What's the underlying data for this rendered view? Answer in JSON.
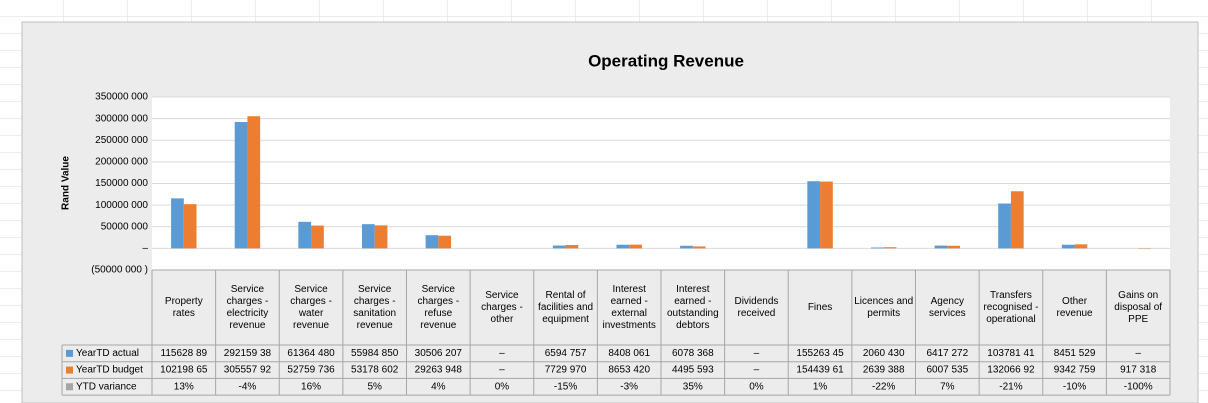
{
  "chart_data": {
    "type": "bar",
    "title": "Operating Revenue",
    "y_label": "Rand Value",
    "categories": [
      "Property rates",
      "Service charges - electricity revenue",
      "Service charges - water revenue",
      "Service charges - sanitation revenue",
      "Service charges - refuse revenue",
      "Service charges - other",
      "Rental of facilities and equipment",
      "Interest earned - external investments",
      "Interest earned - outstanding debtors",
      "Dividends received",
      "Fines",
      "Licences and permits",
      "Agency services",
      "Transfers recognised - operational",
      "Other revenue",
      "Gains on disposal of PPE"
    ],
    "series": [
      {
        "name": "YearTD actual",
        "color": "#5b9bd5",
        "values": [
          115628890,
          292159380,
          61364480,
          55984850,
          30506207,
          0,
          6594757,
          8408061,
          6078368,
          0,
          155263450,
          2060430,
          6417272,
          103781410,
          8451529,
          0
        ],
        "value_labels": [
          "115628 89",
          "292159 38",
          "61364 480",
          "55984 850",
          "30506 207",
          "–",
          "6594 757",
          "8408 061",
          "6078 368",
          "–",
          "155263 45",
          "2060 430",
          "6417 272",
          "103781 41",
          "8451 529",
          "–"
        ]
      },
      {
        "name": "YearTD budget",
        "color": "#ed7d31",
        "values": [
          102198650,
          305557920,
          52759736,
          53178602,
          29263948,
          0,
          7729970,
          8653420,
          4495593,
          0,
          154439610,
          2639388,
          6007535,
          132066920,
          9342759,
          917318
        ],
        "value_labels": [
          "102198 65",
          "305557 92",
          "52759 736",
          "53178 602",
          "29263 948",
          "–",
          "7729 970",
          "8653 420",
          "4495 593",
          "–",
          "154439 61",
          "2639 388",
          "6007 535",
          "132066 92",
          "9342 759",
          "917 318"
        ]
      },
      {
        "name": "YTD variance",
        "color": "#a5a5a5",
        "table_only": true,
        "values": [
          13,
          -4,
          16,
          5,
          4,
          0,
          -15,
          -3,
          35,
          0,
          1,
          -22,
          7,
          -21,
          -10,
          -100
        ],
        "value_labels": [
          "13%",
          "-4%",
          "16%",
          "5%",
          "4%",
          "0%",
          "-15%",
          "-3%",
          "35%",
          "0%",
          "1%",
          "-22%",
          "7%",
          "-21%",
          "-10%",
          "-100%"
        ]
      }
    ],
    "ylim": [
      -50000000,
      350000000
    ],
    "yticks": [
      {
        "value": -50000000,
        "label": "(50000 000 )"
      },
      {
        "value": 0,
        "label": "–"
      },
      {
        "value": 50000000,
        "label": "50000 000"
      },
      {
        "value": 100000000,
        "label": "100000 000"
      },
      {
        "value": 150000000,
        "label": "150000 000"
      },
      {
        "value": 200000000,
        "label": "200000 000"
      },
      {
        "value": 250000000,
        "label": "250000 000"
      },
      {
        "value": 300000000,
        "label": "300000 000"
      },
      {
        "value": 350000000,
        "label": "350000 000"
      }
    ],
    "grid": true
  }
}
